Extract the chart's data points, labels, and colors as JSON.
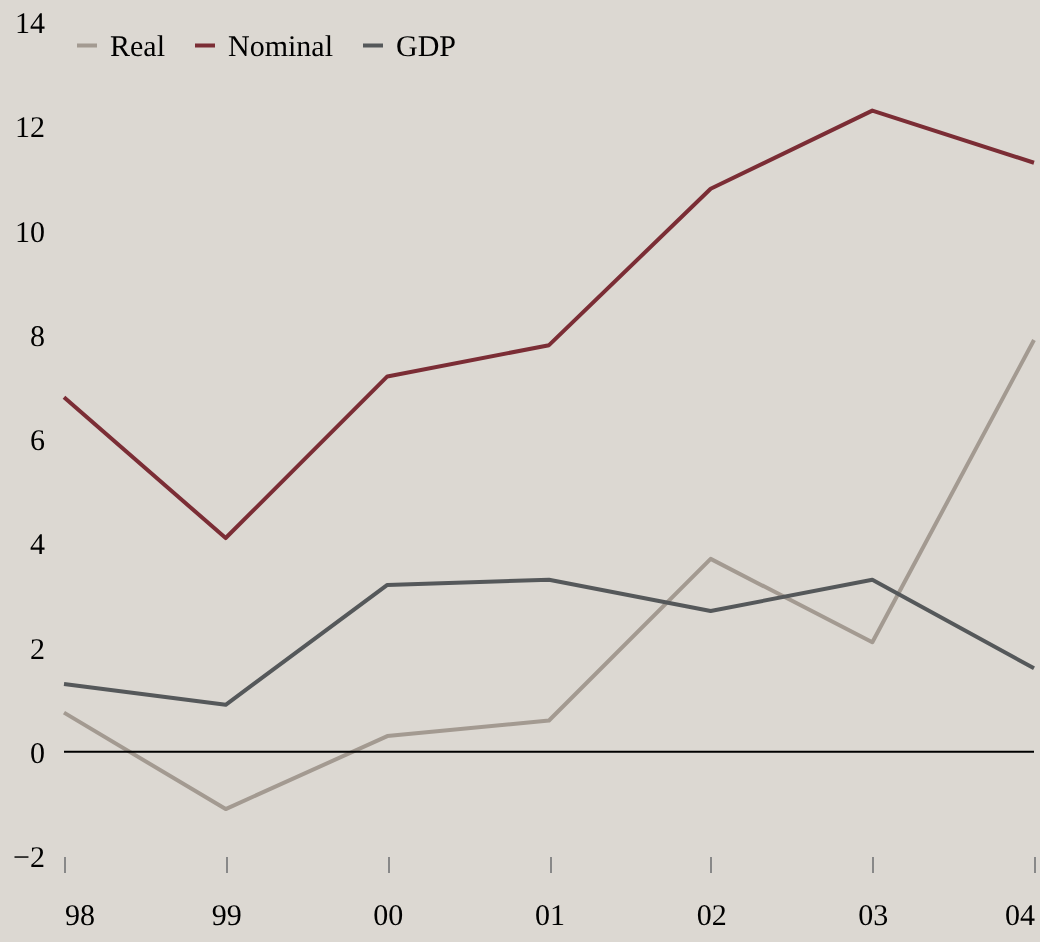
{
  "chart_data": {
    "type": "line",
    "categories": [
      "98",
      "99",
      "00",
      "01",
      "02",
      "03",
      "04"
    ],
    "series": [
      {
        "name": "Real",
        "color": "#a39a91",
        "values": [
          0.75,
          -1.1,
          0.3,
          0.6,
          3.7,
          2.1,
          7.9
        ]
      },
      {
        "name": "Nominal",
        "color": "#7b2d35",
        "values": [
          6.8,
          4.1,
          7.2,
          7.8,
          10.8,
          12.3,
          11.3
        ]
      },
      {
        "name": "GDP",
        "color": "#55585a",
        "values": [
          1.3,
          0.9,
          3.2,
          3.3,
          2.7,
          3.3,
          1.6
        ]
      }
    ],
    "ylim": [
      -2,
      14
    ],
    "yticks": [
      -2,
      0,
      2,
      4,
      6,
      8,
      10,
      12,
      14
    ],
    "ref_lines": [
      {
        "axis": "y",
        "value": 0,
        "color": "#000000"
      }
    ],
    "grid": false,
    "legend": "top left",
    "marker": "none",
    "line_style": "solid"
  }
}
